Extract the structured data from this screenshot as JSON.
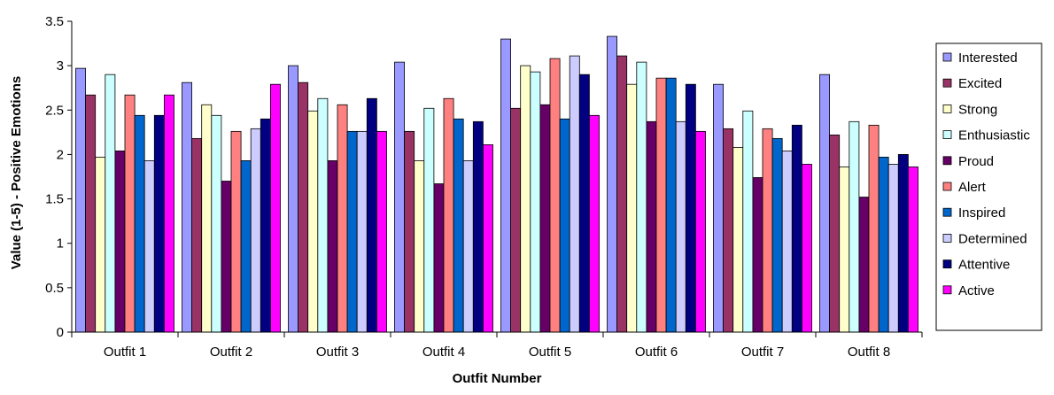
{
  "chart_data": {
    "type": "bar",
    "xlabel": "Outfit Number",
    "ylabel": "Value (1-5) - Positive Emotions",
    "ylim": [
      0,
      3.5
    ],
    "yticks": [
      "0",
      "0.5",
      "1",
      "1.5",
      "2",
      "2.5",
      "3",
      "3.5"
    ],
    "categories": [
      "Outfit 1",
      "Outfit 2",
      "Outfit 3",
      "Outfit 4",
      "Outfit 5",
      "Outfit 6",
      "Outfit 7",
      "Outfit 8"
    ],
    "legend_position": "right",
    "grid": false,
    "series": [
      {
        "name": "Interested",
        "color": "#9999FF",
        "values": [
          2.97,
          2.81,
          3.0,
          3.04,
          3.3,
          3.33,
          2.79,
          2.9
        ]
      },
      {
        "name": "Excited",
        "color": "#993366",
        "values": [
          2.67,
          2.18,
          2.81,
          2.26,
          2.52,
          3.11,
          2.29,
          2.22
        ]
      },
      {
        "name": "Strong",
        "color": "#FFFFCC",
        "values": [
          1.97,
          2.56,
          2.49,
          1.93,
          3.0,
          2.79,
          2.08,
          1.86
        ]
      },
      {
        "name": "Enthusiastic",
        "color": "#CCFFFF",
        "values": [
          2.9,
          2.44,
          2.63,
          2.52,
          2.93,
          3.04,
          2.49,
          2.37
        ]
      },
      {
        "name": "Proud",
        "color": "#660066",
        "values": [
          2.04,
          1.7,
          1.93,
          1.67,
          2.56,
          2.37,
          1.74,
          1.52
        ]
      },
      {
        "name": "Alert",
        "color": "#FF8080",
        "values": [
          2.67,
          2.26,
          2.56,
          2.63,
          3.08,
          2.86,
          2.29,
          2.33
        ]
      },
      {
        "name": "Inspired",
        "color": "#0066CC",
        "values": [
          2.44,
          1.93,
          2.26,
          2.4,
          2.4,
          2.86,
          2.18,
          1.97
        ]
      },
      {
        "name": "Determined",
        "color": "#CCCCFF",
        "values": [
          1.93,
          2.29,
          2.26,
          1.93,
          3.11,
          2.37,
          2.04,
          1.89
        ]
      },
      {
        "name": "Attentive",
        "color": "#000080",
        "values": [
          2.44,
          2.4,
          2.63,
          2.37,
          2.9,
          2.79,
          2.33,
          2.0
        ]
      },
      {
        "name": "Active",
        "color": "#FF00FF",
        "values": [
          2.67,
          2.79,
          2.26,
          2.11,
          2.44,
          2.26,
          1.89,
          1.86
        ]
      }
    ]
  }
}
